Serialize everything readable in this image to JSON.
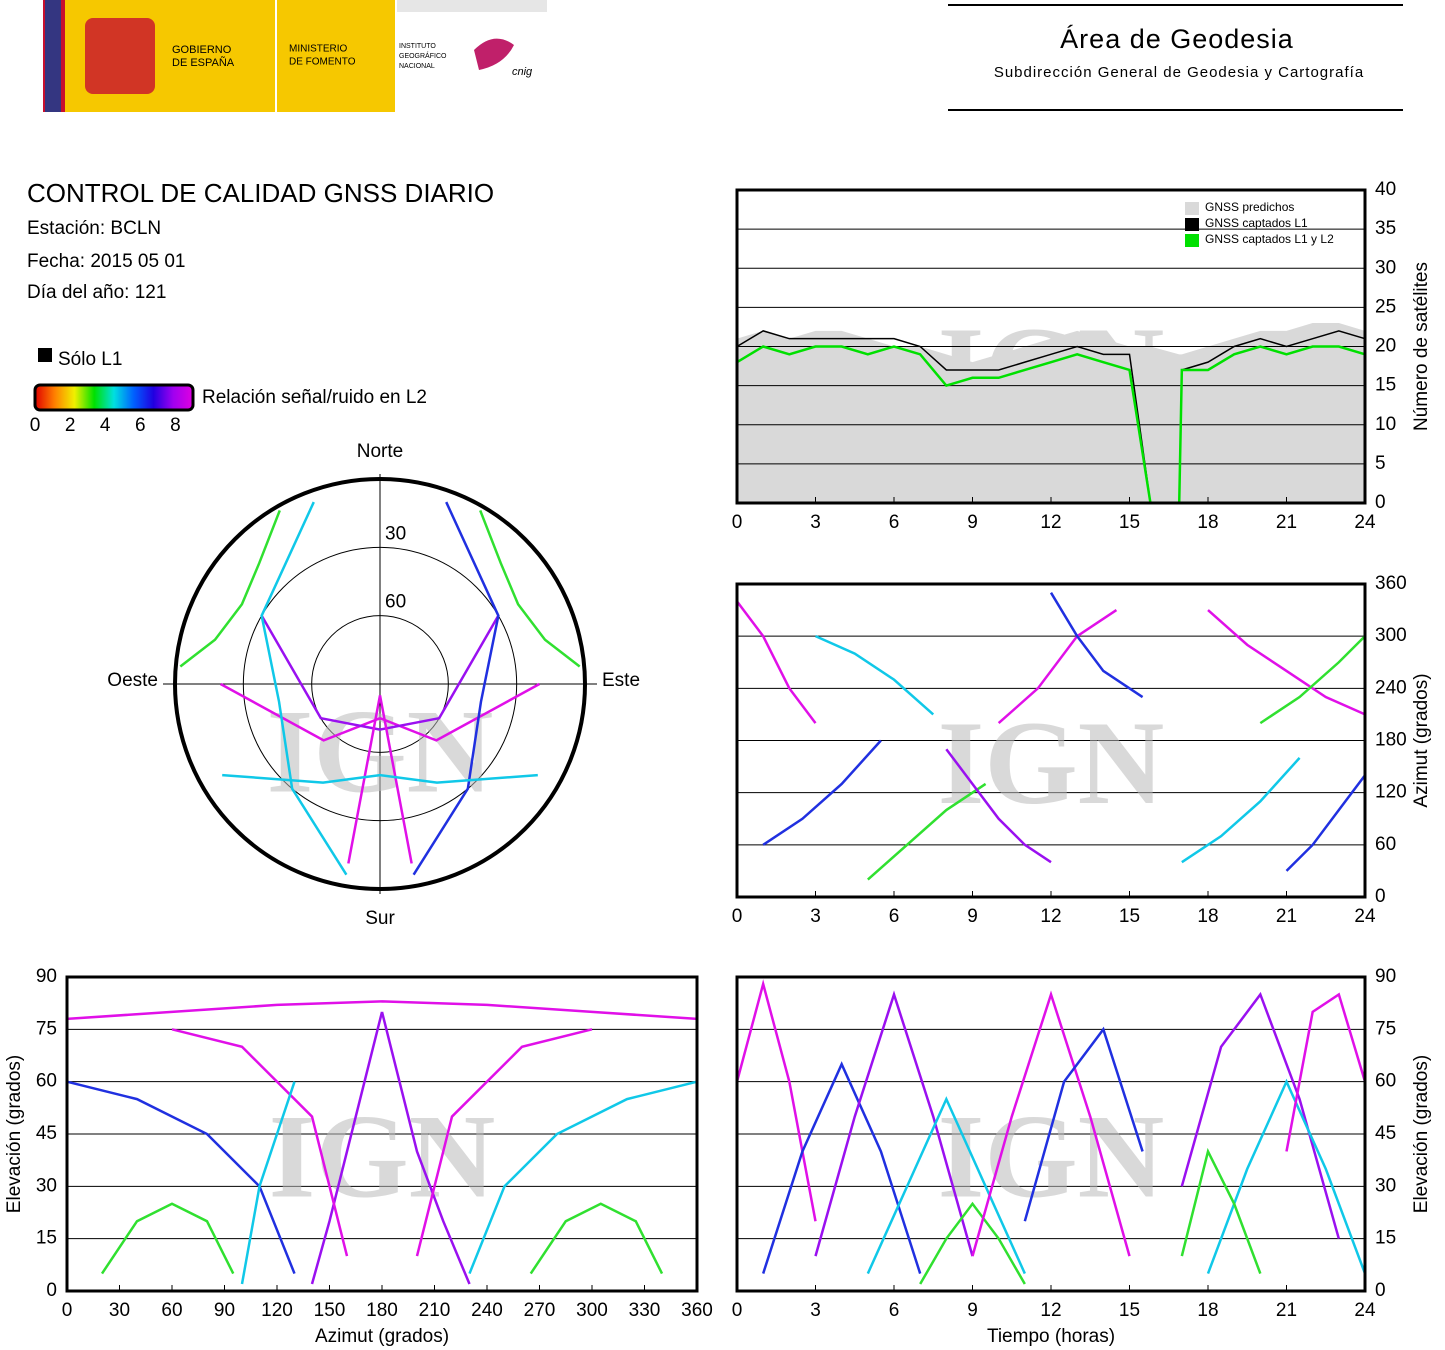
{
  "header": {
    "gobierno": [
      "GOBIERNO",
      "DE ESPAÑA"
    ],
    "ministerio": [
      "MINISTERIO",
      "DE FOMENTO"
    ],
    "instituto": [
      "INSTITUTO",
      "GEOGRÁFICO",
      "NACIONAL"
    ],
    "cnig": "cnig",
    "area": "Área de Geodesia",
    "subdireccion": "Subdirección General de Geodesia y Cartografía"
  },
  "info": {
    "title": "CONTROL DE CALIDAD GNSS DIARIO",
    "station": "Estación: BCLN",
    "date": "Fecha: 2015 05 01",
    "doy": "Día del año: 121"
  },
  "legend": {
    "l1_only": {
      "label": "Sólo L1",
      "color": "#000000"
    },
    "colorbar": {
      "label": "Relación señal/ruido en L2",
      "ticks": [
        0,
        2,
        4,
        6,
        8
      ],
      "lim": [
        0,
        9
      ],
      "colors": [
        "#e00000",
        "#ff8000",
        "#f0f000",
        "#00e000",
        "#00e0e0",
        "#0060ff",
        "#2000e0",
        "#a000f0",
        "#e000e0"
      ]
    }
  },
  "watermark": "IGN",
  "chart_data": [
    {
      "type": "line",
      "xlim": [
        0,
        24
      ],
      "xticks": [
        0,
        3,
        6,
        9,
        12,
        15,
        18,
        21,
        24
      ],
      "ylim": [
        0,
        40
      ],
      "yticks": [
        0,
        5,
        10,
        15,
        20,
        25,
        30,
        35,
        40
      ],
      "ylabel": "Número de satélites",
      "grid": true,
      "legend": "upper right",
      "x": [
        0,
        1,
        2,
        3,
        4,
        5,
        6,
        7,
        8,
        9,
        10,
        11,
        12,
        13,
        14,
        15,
        15.8,
        16.9,
        17,
        18,
        19,
        20,
        21,
        22,
        23,
        24
      ],
      "series": [
        {
          "name": "GNSS predichos",
          "color": "#d9d9d9",
          "style": "area",
          "values": [
            21,
            22,
            21,
            22,
            22,
            21,
            20,
            20,
            19,
            18,
            19,
            20,
            21,
            22,
            21,
            20,
            20,
            19,
            19,
            20,
            21,
            22,
            22,
            23,
            23,
            22
          ]
        },
        {
          "name": "GNSS captados L1",
          "color": "#000000",
          "style": "line",
          "values": [
            20,
            22,
            21,
            21,
            21,
            21,
            21,
            20,
            17,
            17,
            17,
            18,
            19,
            20,
            19,
            19,
            0,
            0,
            17,
            18,
            20,
            21,
            20,
            21,
            22,
            21
          ]
        },
        {
          "name": "GNSS captados L1 y L2",
          "color": "#00e000",
          "style": "line",
          "values": [
            18,
            20,
            19,
            20,
            20,
            19,
            20,
            19,
            15,
            16,
            16,
            17,
            18,
            19,
            18,
            17,
            0,
            0,
            17,
            17,
            19,
            20,
            19,
            20,
            20,
            19
          ]
        }
      ]
    },
    {
      "type": "track",
      "xlim": [
        0,
        24
      ],
      "xticks": [
        0,
        3,
        6,
        9,
        12,
        15,
        18,
        21,
        24
      ],
      "ylim": [
        0,
        360
      ],
      "yticks": [
        0,
        60,
        120,
        180,
        240,
        300,
        360
      ],
      "ylabel": "Azimut (grados)",
      "grid": true,
      "series": [
        {
          "color": "#e010e8",
          "x": [
            0,
            1,
            2,
            3
          ],
          "values": [
            340,
            300,
            240,
            200
          ]
        },
        {
          "color": "#2030e0",
          "x": [
            1,
            2.5,
            4,
            5.5
          ],
          "values": [
            60,
            90,
            130,
            180
          ]
        },
        {
          "color": "#10c8e8",
          "x": [
            3,
            4.5,
            6,
            7.5
          ],
          "values": [
            300,
            280,
            250,
            210
          ]
        },
        {
          "color": "#30e030",
          "x": [
            5,
            6.5,
            8,
            9.5
          ],
          "values": [
            20,
            60,
            100,
            130
          ]
        },
        {
          "color": "#9a10f0",
          "x": [
            8,
            9,
            10,
            11,
            12
          ],
          "values": [
            170,
            130,
            90,
            60,
            40
          ]
        },
        {
          "color": "#e010e8",
          "x": [
            10,
            11.5,
            13,
            14.5
          ],
          "values": [
            200,
            240,
            300,
            330
          ]
        },
        {
          "color": "#2030e0",
          "x": [
            12,
            13,
            14,
            15.5
          ],
          "values": [
            350,
            300,
            260,
            230
          ]
        },
        {
          "color": "#10c8e8",
          "x": [
            17,
            18.5,
            20,
            21.5
          ],
          "values": [
            40,
            70,
            110,
            160
          ]
        },
        {
          "color": "#e010e8",
          "x": [
            18,
            19.5,
            21,
            22.5,
            24
          ],
          "values": [
            330,
            290,
            260,
            230,
            210
          ]
        },
        {
          "color": "#30e030",
          "x": [
            20,
            21.5,
            23,
            24
          ],
          "values": [
            200,
            230,
            270,
            300
          ]
        },
        {
          "color": "#2030e0",
          "x": [
            21,
            22,
            23,
            24
          ],
          "values": [
            30,
            60,
            100,
            140
          ]
        }
      ]
    },
    {
      "type": "polar",
      "rlim": [
        90,
        0
      ],
      "rticks": [
        30,
        60
      ],
      "directions": {
        "north": "Norte",
        "east": "Este",
        "south": "Sur",
        "west": "Oeste"
      },
      "series": [
        {
          "color": "#e010e8",
          "x": [
            90,
            135,
            180,
            225,
            270
          ],
          "values": [
            20,
            55,
            75,
            55,
            20
          ]
        },
        {
          "color": "#9a10f0",
          "x": [
            60,
            120,
            180,
            240,
            300
          ],
          "values": [
            30,
            60,
            70,
            60,
            30
          ]
        },
        {
          "color": "#2030e0",
          "x": [
            20,
            60,
            100,
            140,
            170
          ],
          "values": [
            5,
            30,
            45,
            30,
            5
          ]
        },
        {
          "color": "#10c8e8",
          "x": [
            340,
            300,
            260,
            220,
            190
          ],
          "values": [
            5,
            30,
            45,
            30,
            5
          ]
        },
        {
          "color": "#30e030",
          "x": [
            30,
            45,
            60,
            75,
            85
          ],
          "values": [
            2,
            15,
            20,
            15,
            2
          ]
        },
        {
          "color": "#30e030",
          "x": [
            330,
            315,
            300,
            285,
            275
          ],
          "values": [
            2,
            15,
            20,
            15,
            2
          ]
        },
        {
          "color": "#e010e8",
          "x": [
            170,
            180,
            190
          ],
          "values": [
            10,
            85,
            10
          ]
        },
        {
          "color": "#10c8e8",
          "x": [
            120,
            150,
            180,
            210,
            240
          ],
          "values": [
            10,
            40,
            50,
            40,
            10
          ]
        }
      ]
    },
    {
      "type": "track",
      "xlim": [
        0,
        360
      ],
      "xticks": [
        0,
        30,
        60,
        90,
        120,
        150,
        180,
        210,
        240,
        270,
        300,
        330,
        360
      ],
      "ylim": [
        0,
        90
      ],
      "yticks": [
        0,
        15,
        30,
        45,
        60,
        75,
        90
      ],
      "xlabel": "Azimut (grados)",
      "ylabel": "Elevación (grados)",
      "grid": true,
      "series": [
        {
          "color": "#e010e8",
          "x": [
            0,
            60,
            120,
            180,
            240,
            300,
            360
          ],
          "values": [
            78,
            80,
            82,
            83,
            82,
            80,
            78
          ]
        },
        {
          "color": "#9a10f0",
          "x": [
            180,
            170,
            160,
            150,
            140
          ],
          "values": [
            80,
            60,
            40,
            20,
            2
          ]
        },
        {
          "color": "#9a10f0",
          "x": [
            180,
            190,
            200,
            215,
            230
          ],
          "values": [
            80,
            60,
            40,
            20,
            2
          ]
        },
        {
          "color": "#2030e0",
          "x": [
            0,
            40,
            80,
            110,
            130
          ],
          "values": [
            60,
            55,
            45,
            30,
            5
          ]
        },
        {
          "color": "#10c8e8",
          "x": [
            360,
            320,
            280,
            250,
            230
          ],
          "values": [
            60,
            55,
            45,
            30,
            5
          ]
        },
        {
          "color": "#30e030",
          "x": [
            20,
            40,
            60,
            80,
            95
          ],
          "values": [
            5,
            20,
            25,
            20,
            5
          ]
        },
        {
          "color": "#30e030",
          "x": [
            265,
            285,
            305,
            325,
            340
          ],
          "values": [
            5,
            20,
            25,
            20,
            5
          ]
        },
        {
          "color": "#e010e8",
          "x": [
            60,
            100,
            140,
            160
          ],
          "values": [
            75,
            70,
            50,
            10
          ]
        },
        {
          "color": "#e010e8",
          "x": [
            300,
            260,
            220,
            200
          ],
          "values": [
            75,
            70,
            50,
            10
          ]
        },
        {
          "color": "#10c8e8",
          "x": [
            100,
            110,
            120,
            130
          ],
          "values": [
            2,
            30,
            45,
            60
          ]
        }
      ]
    },
    {
      "type": "track",
      "xlim": [
        0,
        24
      ],
      "xticks": [
        0,
        3,
        6,
        9,
        12,
        15,
        18,
        21,
        24
      ],
      "ylim": [
        0,
        90
      ],
      "yticks": [
        0,
        15,
        30,
        45,
        60,
        75,
        90
      ],
      "xlabel": "Tiempo (horas)",
      "ylabel": "Elevación (grados)",
      "grid": true,
      "series": [
        {
          "color": "#e010e8",
          "x": [
            0,
            1,
            2,
            3
          ],
          "values": [
            60,
            88,
            60,
            20
          ]
        },
        {
          "color": "#2030e0",
          "x": [
            1,
            2.5,
            4,
            5.5,
            7
          ],
          "values": [
            5,
            40,
            65,
            40,
            5
          ]
        },
        {
          "color": "#9a10f0",
          "x": [
            3,
            4.5,
            6,
            7.5,
            9
          ],
          "values": [
            10,
            50,
            85,
            50,
            10
          ]
        },
        {
          "color": "#10c8e8",
          "x": [
            5,
            6.5,
            8,
            9.5,
            11
          ],
          "values": [
            5,
            30,
            55,
            30,
            5
          ]
        },
        {
          "color": "#30e030",
          "x": [
            7,
            8,
            9,
            10,
            11
          ],
          "values": [
            2,
            15,
            25,
            15,
            2
          ]
        },
        {
          "color": "#e010e8",
          "x": [
            9,
            10.5,
            12,
            13.5,
            15
          ],
          "values": [
            10,
            50,
            85,
            50,
            10
          ]
        },
        {
          "color": "#2030e0",
          "x": [
            11,
            12.5,
            14,
            15.5
          ],
          "values": [
            20,
            60,
            75,
            40
          ]
        },
        {
          "color": "#9a10f0",
          "x": [
            17,
            18.5,
            20,
            21.5,
            23
          ],
          "values": [
            30,
            70,
            85,
            55,
            15
          ]
        },
        {
          "color": "#10c8e8",
          "x": [
            18,
            19.5,
            21,
            22.5,
            24
          ],
          "values": [
            5,
            35,
            60,
            35,
            5
          ]
        },
        {
          "color": "#30e030",
          "x": [
            17,
            18,
            19,
            20
          ],
          "values": [
            10,
            40,
            25,
            5
          ]
        },
        {
          "color": "#e010e8",
          "x": [
            21,
            22,
            23,
            24
          ],
          "values": [
            40,
            80,
            85,
            60
          ]
        }
      ]
    }
  ]
}
